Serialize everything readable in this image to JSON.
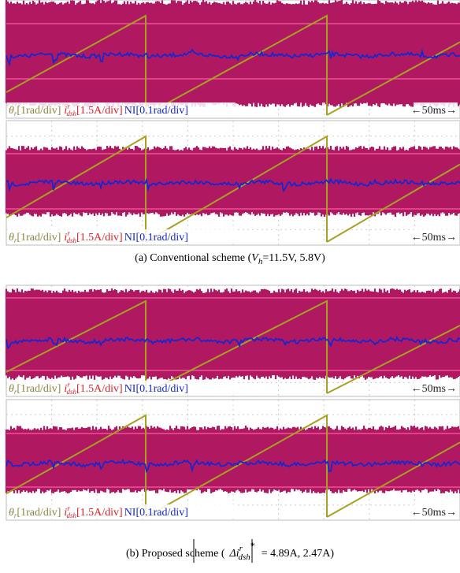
{
  "panels": [
    {
      "legend": [
        {
          "symbol": "θ",
          "sub": "r",
          "scale": "[1rad/div]"
        },
        {
          "symbol": "i",
          "sup": "r",
          "sub": "dsh",
          "scale": "[1.5A/div]"
        },
        {
          "label": "NI[0.1rad/div]"
        }
      ],
      "time_scale": "←50ms→"
    },
    {
      "legend": [
        {
          "symbol": "θ",
          "sub": "r",
          "scale": "[1rad/div]"
        },
        {
          "symbol": "i",
          "sup": "r",
          "sub": "dsh",
          "scale": "[1.5A/div]"
        },
        {
          "label": "NI[0.1rad/div]"
        }
      ],
      "time_scale": "←50ms→"
    },
    {
      "legend": [
        {
          "symbol": "θ",
          "sub": "r",
          "scale": "[1rad/div]"
        },
        {
          "symbol": "i",
          "sup": "r",
          "sub": "dsh",
          "scale": "[1.5A/div]"
        },
        {
          "label": "NI[0.1rad/div]"
        }
      ],
      "time_scale": "←50ms→"
    },
    {
      "legend": [
        {
          "symbol": "θ",
          "sub": "r",
          "scale": "[1rad/div]"
        },
        {
          "symbol": "i",
          "sup": "r",
          "sub": "dsh",
          "scale": "[1.5A/div]"
        },
        {
          "label": "NI[0.1rad/div]"
        }
      ],
      "time_scale": "←50ms→"
    }
  ],
  "captions": [
    {
      "pre": "(a) Conventional scheme (",
      "var": "V",
      "sub": "h",
      "post": "=11.5V, 5.8V)"
    },
    {
      "pre": "(b) Proposed scheme (",
      "var": "Δi",
      "sup": "r",
      "sub": "dsh",
      "star": "*",
      "post": "= 4.89A, 2.47A)"
    }
  ]
}
